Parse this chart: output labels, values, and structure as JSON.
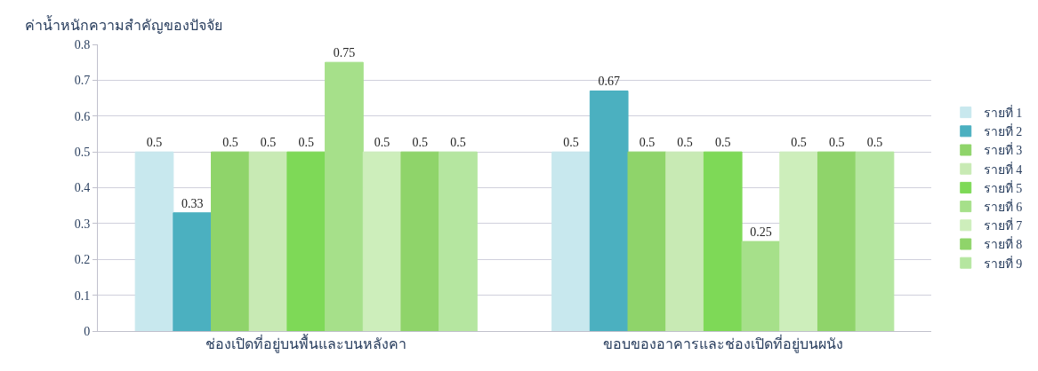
{
  "chart_data": {
    "type": "bar",
    "ylabel": "ค่าน้ำหนักความสำคัญของปัจจัย",
    "categories": [
      "ช่องเปิดที่อยู่บนพื้นและบนหลังคา",
      "ขอบของอาคารและช่องเปิดที่อยู่บนผนัง"
    ],
    "series": [
      {
        "name": "รายที่ 1",
        "color": "#c8e8ee",
        "values": [
          0.5,
          0.5
        ]
      },
      {
        "name": "รายที่ 2",
        "color": "#4bb0c0",
        "values": [
          0.33,
          0.67
        ]
      },
      {
        "name": "รายที่ 3",
        "color": "#8fd46a",
        "values": [
          0.5,
          0.5
        ]
      },
      {
        "name": "รายที่ 4",
        "color": "#c8eab4",
        "values": [
          0.5,
          0.5
        ]
      },
      {
        "name": "รายที่ 5",
        "color": "#7ed957",
        "values": [
          0.5,
          0.5
        ]
      },
      {
        "name": "รายที่ 6",
        "color": "#a6e08a",
        "values": [
          0.75,
          0.25
        ]
      },
      {
        "name": "รายที่ 7",
        "color": "#cdeebb",
        "values": [
          0.5,
          0.5
        ]
      },
      {
        "name": "รายที่ 8",
        "color": "#8fd46a",
        "values": [
          0.5,
          0.5
        ]
      },
      {
        "name": "รายที่ 9",
        "color": "#b5e6a0",
        "values": [
          0.5,
          0.5
        ]
      }
    ],
    "ylim": [
      0,
      0.8
    ],
    "yticks": [
      0,
      0.1,
      0.2,
      0.3,
      0.4,
      0.5,
      0.6,
      0.7,
      0.8
    ],
    "grid": "y",
    "legend": "right",
    "data_labels": true
  }
}
